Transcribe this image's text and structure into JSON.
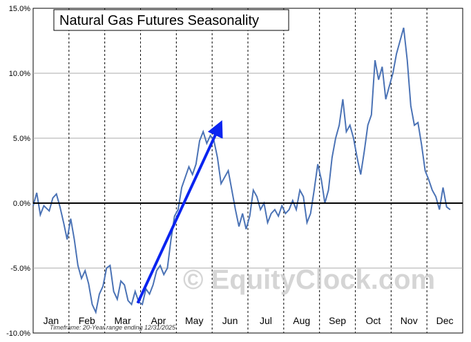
{
  "chart_data": {
    "type": "line",
    "title": "Natural Gas Futures Seasonality",
    "footnote": "Timeframe: 20-Year range ending 12/31/2025",
    "watermark": "© EquityClock.com",
    "xlabel": "",
    "ylabel": "",
    "ylim": [
      -10,
      15
    ],
    "y_ticks": [
      "15.0%",
      "10.0%",
      "5.0%",
      "0.0%",
      "-5.0%",
      "-10.0%"
    ],
    "months": [
      "Jan",
      "Feb",
      "Mar",
      "Apr",
      "May",
      "Jun",
      "Jul",
      "Aug",
      "Sep",
      "Oct",
      "Nov",
      "Dec"
    ],
    "grid": true,
    "colors": {
      "line": "#4a72b5",
      "arrow": "#0a24f0",
      "zero_line": "#000000",
      "grid": "#aaaaaa"
    },
    "series": [
      {
        "values": [
          [
            0.0,
            -0.2
          ],
          [
            0.1,
            0.8
          ],
          [
            0.2,
            -0.9
          ],
          [
            0.3,
            -0.2
          ],
          [
            0.45,
            -0.6
          ],
          [
            0.55,
            0.4
          ],
          [
            0.65,
            0.7
          ],
          [
            0.75,
            -0.3
          ],
          [
            0.85,
            -1.5
          ],
          [
            0.95,
            -2.8
          ],
          [
            1.05,
            -1.2
          ],
          [
            1.15,
            -2.8
          ],
          [
            1.25,
            -4.8
          ],
          [
            1.35,
            -5.8
          ],
          [
            1.45,
            -5.2
          ],
          [
            1.55,
            -6.2
          ],
          [
            1.65,
            -7.8
          ],
          [
            1.75,
            -8.4
          ],
          [
            1.85,
            -7.0
          ],
          [
            1.95,
            -6.4
          ],
          [
            2.05,
            -5.0
          ],
          [
            2.15,
            -4.8
          ],
          [
            2.25,
            -6.8
          ],
          [
            2.35,
            -7.4
          ],
          [
            2.45,
            -6.0
          ],
          [
            2.55,
            -6.3
          ],
          [
            2.65,
            -7.5
          ],
          [
            2.75,
            -7.8
          ],
          [
            2.85,
            -6.8
          ],
          [
            2.95,
            -7.6
          ],
          [
            3.05,
            -7.8
          ],
          [
            3.15,
            -6.6
          ],
          [
            3.25,
            -7.0
          ],
          [
            3.35,
            -6.3
          ],
          [
            3.45,
            -5.2
          ],
          [
            3.55,
            -4.8
          ],
          [
            3.65,
            -5.5
          ],
          [
            3.75,
            -5.0
          ],
          [
            3.85,
            -2.8
          ],
          [
            3.95,
            -1.0
          ],
          [
            4.05,
            -0.5
          ],
          [
            4.15,
            1.2
          ],
          [
            4.25,
            2.0
          ],
          [
            4.35,
            2.8
          ],
          [
            4.45,
            2.2
          ],
          [
            4.55,
            3.0
          ],
          [
            4.65,
            4.8
          ],
          [
            4.75,
            5.5
          ],
          [
            4.85,
            4.6
          ],
          [
            4.95,
            5.2
          ],
          [
            5.05,
            4.8
          ],
          [
            5.15,
            3.5
          ],
          [
            5.25,
            1.5
          ],
          [
            5.35,
            2.0
          ],
          [
            5.45,
            2.5
          ],
          [
            5.55,
            1.0
          ],
          [
            5.65,
            -0.5
          ],
          [
            5.75,
            -1.8
          ],
          [
            5.85,
            -0.8
          ],
          [
            5.95,
            -2.0
          ],
          [
            6.05,
            -1.0
          ],
          [
            6.15,
            1.0
          ],
          [
            6.25,
            0.5
          ],
          [
            6.35,
            -0.5
          ],
          [
            6.45,
            0.0
          ],
          [
            6.55,
            -1.5
          ],
          [
            6.65,
            -0.8
          ],
          [
            6.75,
            -0.5
          ],
          [
            6.85,
            -1.0
          ],
          [
            6.95,
            -0.2
          ],
          [
            7.05,
            -0.8
          ],
          [
            7.15,
            -0.5
          ],
          [
            7.25,
            0.2
          ],
          [
            7.35,
            -0.5
          ],
          [
            7.45,
            1.0
          ],
          [
            7.55,
            0.5
          ],
          [
            7.65,
            -1.5
          ],
          [
            7.75,
            -0.8
          ],
          [
            7.85,
            1.0
          ],
          [
            7.95,
            3.0
          ],
          [
            8.05,
            1.8
          ],
          [
            8.15,
            0.0
          ],
          [
            8.25,
            1.0
          ],
          [
            8.35,
            3.5
          ],
          [
            8.45,
            5.0
          ],
          [
            8.55,
            6.0
          ],
          [
            8.65,
            8.0
          ],
          [
            8.75,
            5.5
          ],
          [
            8.85,
            6.0
          ],
          [
            8.95,
            5.0
          ],
          [
            9.05,
            3.5
          ],
          [
            9.15,
            2.2
          ],
          [
            9.25,
            4.0
          ],
          [
            9.35,
            6.0
          ],
          [
            9.45,
            6.8
          ],
          [
            9.55,
            11.0
          ],
          [
            9.65,
            9.5
          ],
          [
            9.75,
            10.5
          ],
          [
            9.85,
            8.0
          ],
          [
            9.95,
            9.0
          ],
          [
            10.05,
            10.0
          ],
          [
            10.15,
            11.5
          ],
          [
            10.25,
            12.5
          ],
          [
            10.35,
            13.5
          ],
          [
            10.45,
            11.0
          ],
          [
            10.55,
            7.5
          ],
          [
            10.65,
            6.0
          ],
          [
            10.75,
            6.2
          ],
          [
            10.85,
            4.5
          ],
          [
            10.95,
            2.5
          ],
          [
            11.05,
            1.8
          ],
          [
            11.15,
            1.0
          ],
          [
            11.25,
            0.5
          ],
          [
            11.35,
            -0.5
          ],
          [
            11.45,
            1.2
          ],
          [
            11.55,
            -0.3
          ],
          [
            11.65,
            -0.5
          ]
        ]
      }
    ],
    "annotation_arrow": {
      "from": [
        2.92,
        -7.7
      ],
      "to": [
        5.2,
        5.9
      ]
    }
  }
}
